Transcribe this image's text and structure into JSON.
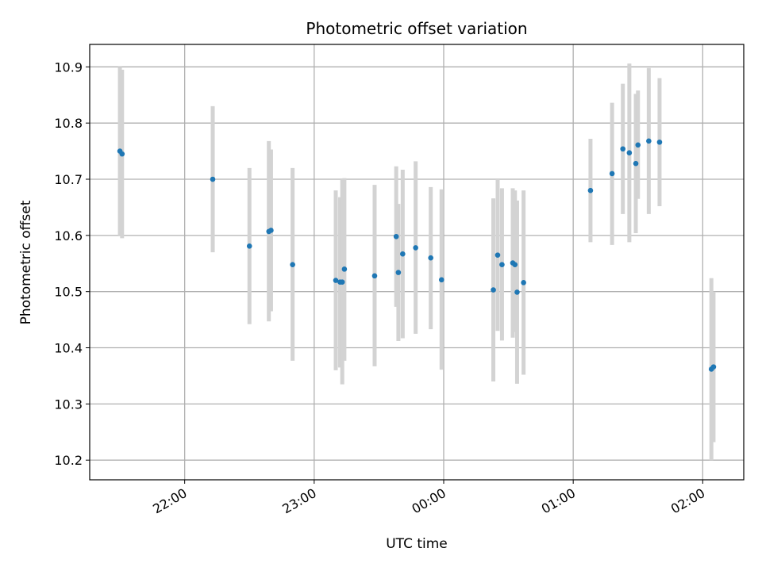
{
  "chart_data": {
    "type": "scatter",
    "title": "Photometric offset variation",
    "xlabel": "UTC time",
    "ylabel": "Photometric offset",
    "x_ticks": [
      "22:00",
      "23:00",
      "00:00",
      "01:00",
      "02:00"
    ],
    "y_ticks": [
      "10.2",
      "10.3",
      "10.4",
      "10.5",
      "10.6",
      "10.7",
      "10.8",
      "10.9"
    ],
    "xlim": [
      "21:16",
      "02:19"
    ],
    "ylim": [
      10.165,
      10.94
    ],
    "grid": true,
    "colors": {
      "point": "#1f77b4",
      "errorbar": "#d3d3d3",
      "grid": "#b0b0b0"
    },
    "points": [
      {
        "t": "21:30",
        "y": 10.75,
        "ylo": 10.6,
        "yhi": 10.9
      },
      {
        "t": "21:31",
        "y": 10.745,
        "ylo": 10.595,
        "yhi": 10.895
      },
      {
        "t": "22:13",
        "y": 10.7,
        "ylo": 10.57,
        "yhi": 10.83
      },
      {
        "t": "22:30",
        "y": 10.581,
        "ylo": 10.442,
        "yhi": 10.72
      },
      {
        "t": "22:39",
        "y": 10.607,
        "ylo": 10.447,
        "yhi": 10.768
      },
      {
        "t": "22:40",
        "y": 10.609,
        "ylo": 10.465,
        "yhi": 10.753
      },
      {
        "t": "22:50",
        "y": 10.548,
        "ylo": 10.377,
        "yhi": 10.72
      },
      {
        "t": "23:10",
        "y": 10.52,
        "ylo": 10.36,
        "yhi": 10.68
      },
      {
        "t": "23:12",
        "y": 10.517,
        "ylo": 10.365,
        "yhi": 10.668
      },
      {
        "t": "23:13",
        "y": 10.517,
        "ylo": 10.335,
        "yhi": 10.7
      },
      {
        "t": "23:14",
        "y": 10.54,
        "ylo": 10.377,
        "yhi": 10.702
      },
      {
        "t": "23:28",
        "y": 10.528,
        "ylo": 10.367,
        "yhi": 10.69
      },
      {
        "t": "23:38",
        "y": 10.598,
        "ylo": 10.473,
        "yhi": 10.723
      },
      {
        "t": "23:39",
        "y": 10.534,
        "ylo": 10.412,
        "yhi": 10.656
      },
      {
        "t": "23:41",
        "y": 10.567,
        "ylo": 10.417,
        "yhi": 10.717
      },
      {
        "t": "23:47",
        "y": 10.578,
        "ylo": 10.425,
        "yhi": 10.732
      },
      {
        "t": "23:54",
        "y": 10.56,
        "ylo": 10.433,
        "yhi": 10.686
      },
      {
        "t": "23:59",
        "y": 10.521,
        "ylo": 10.361,
        "yhi": 10.682
      },
      {
        "t": "00:23",
        "y": 10.503,
        "ylo": 10.34,
        "yhi": 10.666
      },
      {
        "t": "00:25",
        "y": 10.565,
        "ylo": 10.43,
        "yhi": 10.7
      },
      {
        "t": "00:27",
        "y": 10.548,
        "ylo": 10.413,
        "yhi": 10.684
      },
      {
        "t": "00:32",
        "y": 10.551,
        "ylo": 10.418,
        "yhi": 10.684
      },
      {
        "t": "00:33",
        "y": 10.548,
        "ylo": 10.428,
        "yhi": 10.68
      },
      {
        "t": "00:34",
        "y": 10.499,
        "ylo": 10.336,
        "yhi": 10.662
      },
      {
        "t": "00:37",
        "y": 10.516,
        "ylo": 10.352,
        "yhi": 10.68
      },
      {
        "t": "01:08",
        "y": 10.68,
        "ylo": 10.588,
        "yhi": 10.772
      },
      {
        "t": "01:18",
        "y": 10.71,
        "ylo": 10.583,
        "yhi": 10.836
      },
      {
        "t": "01:23",
        "y": 10.754,
        "ylo": 10.638,
        "yhi": 10.87
      },
      {
        "t": "01:26",
        "y": 10.747,
        "ylo": 10.588,
        "yhi": 10.906
      },
      {
        "t": "01:29",
        "y": 10.728,
        "ylo": 10.604,
        "yhi": 10.852
      },
      {
        "t": "01:30",
        "y": 10.761,
        "ylo": 10.665,
        "yhi": 10.858
      },
      {
        "t": "01:35",
        "y": 10.768,
        "ylo": 10.638,
        "yhi": 10.898
      },
      {
        "t": "01:40",
        "y": 10.766,
        "ylo": 10.652,
        "yhi": 10.88
      },
      {
        "t": "02:04",
        "y": 10.362,
        "ylo": 10.2,
        "yhi": 10.524
      },
      {
        "t": "02:05",
        "y": 10.366,
        "ylo": 10.232,
        "yhi": 10.5
      }
    ]
  }
}
